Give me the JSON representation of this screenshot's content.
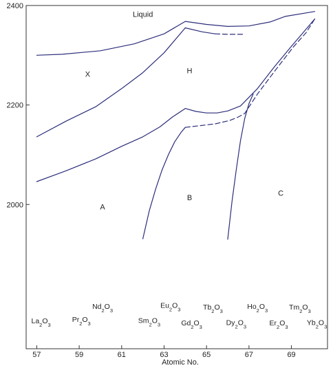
{
  "chart_data": {
    "type": "line",
    "xlabel": "Atomic No.",
    "ylabel": "",
    "xlim": [
      56.5,
      70.7
    ],
    "ylim": [
      1710,
      2400
    ],
    "x_ticks": [
      57,
      59,
      61,
      63,
      65,
      67,
      69
    ],
    "y_ticks": [
      2000,
      2200,
      2400
    ],
    "grid": false,
    "line_color": "#2b2d7a",
    "series": [
      {
        "style": "solid",
        "x": [
          57,
          58.2,
          60,
          61.6,
          63,
          64,
          65,
          66,
          67,
          68,
          68.7,
          70.1
        ],
        "y": [
          2300,
          2302,
          2309,
          2323,
          2343,
          2368,
          2362,
          2358,
          2359,
          2367,
          2378,
          2388
        ]
      },
      {
        "style": "solid",
        "x": [
          57,
          58.4,
          59.8,
          61,
          62,
          63,
          64
        ],
        "y": [
          2136,
          2168,
          2197,
          2233,
          2265,
          2305,
          2355
        ]
      },
      {
        "style": "solid",
        "x": [
          64,
          64.8,
          65.4
        ],
        "y": [
          2355,
          2347,
          2343
        ]
      },
      {
        "style": "dashed",
        "x": [
          65.4,
          66,
          66.7
        ],
        "y": [
          2343,
          2342,
          2342
        ]
      },
      {
        "style": "solid",
        "x": [
          57,
          58.4,
          59.8,
          61,
          62,
          62.8,
          63.4,
          64
        ],
        "y": [
          2046,
          2068,
          2092,
          2117,
          2136,
          2156,
          2176,
          2193
        ]
      },
      {
        "style": "solid",
        "x": [
          64,
          64.5,
          65,
          65.5,
          66,
          66.6,
          67.4,
          68.2,
          69,
          69.6,
          70.1
        ],
        "y": [
          2193,
          2187,
          2184,
          2184,
          2188,
          2198,
          2233,
          2277,
          2318,
          2348,
          2373
        ]
      },
      {
        "style": "solid",
        "x": [
          62,
          62.3,
          62.6,
          62.9,
          63.2,
          63.5,
          63.8,
          64
        ],
        "y": [
          1931,
          1987,
          2031,
          2069,
          2100,
          2126,
          2145,
          2155
        ]
      },
      {
        "style": "dashed",
        "x": [
          64,
          64.6,
          65.4,
          66.1,
          66.5,
          66.8,
          67.4,
          68.3,
          69.1,
          69.7,
          70.1
        ],
        "y": [
          2155,
          2158,
          2162,
          2169,
          2176,
          2183,
          2222,
          2273,
          2317,
          2346,
          2373
        ]
      },
      {
        "style": "solid",
        "x": [
          66,
          66.2,
          66.4,
          66.6,
          66.8,
          67
        ],
        "y": [
          1930,
          2006,
          2070,
          2128,
          2173,
          2203
        ]
      },
      {
        "style": "solid",
        "x": [
          67,
          67.2
        ],
        "y": [
          2203,
          2222
        ]
      }
    ],
    "annotations": [
      {
        "text": "Liquid",
        "x": 62,
        "y": 2377
      },
      {
        "text": "X",
        "x": 59.4,
        "y": 2257
      },
      {
        "text": "H",
        "x": 64.2,
        "y": 2264
      },
      {
        "text": "A",
        "x": 60.1,
        "y": 1990
      },
      {
        "text": "B",
        "x": 64.2,
        "y": 2009
      },
      {
        "text": "C",
        "x": 68.5,
        "y": 2018
      }
    ],
    "compound_labels": [
      {
        "base": "La",
        "o": "O",
        "x": 57.2,
        "y": 1761
      },
      {
        "base": "Pr",
        "o": "O",
        "x": 59.1,
        "y": 1764
      },
      {
        "base": "Nd",
        "o": "O",
        "x": 60.1,
        "y": 1790
      },
      {
        "base": "Sm",
        "o": "O",
        "x": 62.3,
        "y": 1762
      },
      {
        "base": "Eu",
        "o": "O",
        "x": 63.3,
        "y": 1792
      },
      {
        "base": "Gd",
        "o": "O",
        "x": 64.3,
        "y": 1757
      },
      {
        "base": "Tb",
        "o": "O",
        "x": 65.3,
        "y": 1789
      },
      {
        "base": "Dy",
        "o": "O",
        "x": 66.4,
        "y": 1758
      },
      {
        "base": "Ho",
        "o": "O",
        "x": 67.4,
        "y": 1790
      },
      {
        "base": "Er",
        "o": "O",
        "x": 68.4,
        "y": 1757
      },
      {
        "base": "Tm",
        "o": "O",
        "x": 69.4,
        "y": 1789
      },
      {
        "base": "Yb",
        "o": "O",
        "x": 70.2,
        "y": 1758
      }
    ]
  }
}
